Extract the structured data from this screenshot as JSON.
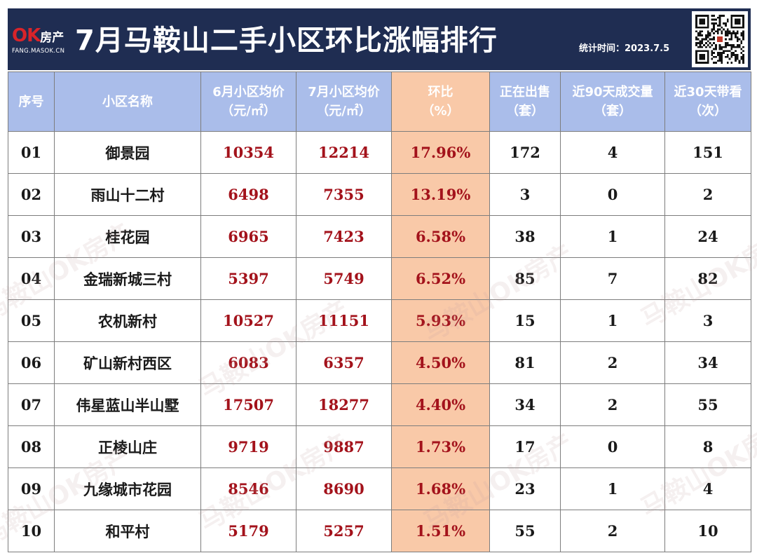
{
  "header": {
    "logo": {
      "ok": "OK",
      "brand": "房产",
      "url": "FANG.MASOK.CN"
    },
    "title": "7月马鞍山二手小区环比涨幅排行",
    "stat_label": "统计时间：",
    "stat_date": "2023.7.5",
    "watermark": "马鞍山OK房产"
  },
  "table": {
    "headers": {
      "no": "序号",
      "name": "小区名称",
      "jun_price": [
        "6月小区均价",
        "（元/㎡）"
      ],
      "jul_price": [
        "7月小区均价",
        "（元/㎡）"
      ],
      "mom": [
        "环比",
        "（%）"
      ],
      "on_sale": [
        "正在出售",
        "（套）"
      ],
      "deals_90": [
        "近90天成交量",
        "（套）"
      ],
      "visits_30": [
        "近30天带看",
        "（次）"
      ]
    },
    "rows": [
      {
        "no": "01",
        "name": "御景园",
        "jun": "10354",
        "jul": "12214",
        "mom": "17.96%",
        "sale": "172",
        "deals": "4",
        "visits": "151"
      },
      {
        "no": "02",
        "name": "雨山十二村",
        "jun": "6498",
        "jul": "7355",
        "mom": "13.19%",
        "sale": "3",
        "deals": "0",
        "visits": "2"
      },
      {
        "no": "03",
        "name": "桂花园",
        "jun": "6965",
        "jul": "7423",
        "mom": "6.58%",
        "sale": "38",
        "deals": "1",
        "visits": "24"
      },
      {
        "no": "04",
        "name": "金瑞新城三村",
        "jun": "5397",
        "jul": "5749",
        "mom": "6.52%",
        "sale": "85",
        "deals": "7",
        "visits": "82"
      },
      {
        "no": "05",
        "name": "农机新村",
        "jun": "10527",
        "jul": "11151",
        "mom": "5.93%",
        "sale": "15",
        "deals": "1",
        "visits": "3"
      },
      {
        "no": "06",
        "name": "矿山新村西区",
        "jun": "6083",
        "jul": "6357",
        "mom": "4.50%",
        "sale": "81",
        "deals": "2",
        "visits": "34"
      },
      {
        "no": "07",
        "name": "伟星蓝山半山墅",
        "jun": "17507",
        "jul": "18277",
        "mom": "4.40%",
        "sale": "34",
        "deals": "2",
        "visits": "55"
      },
      {
        "no": "08",
        "name": "正棱山庄",
        "jun": "9719",
        "jul": "9887",
        "mom": "1.73%",
        "sale": "17",
        "deals": "0",
        "visits": "8"
      },
      {
        "no": "09",
        "name": "九缘城市花园",
        "jun": "8546",
        "jul": "8690",
        "mom": "1.68%",
        "sale": "23",
        "deals": "1",
        "visits": "4"
      },
      {
        "no": "10",
        "name": "和平村",
        "jun": "5179",
        "jul": "5257",
        "mom": "1.51%",
        "sale": "55",
        "deals": "2",
        "visits": "10"
      }
    ]
  }
}
